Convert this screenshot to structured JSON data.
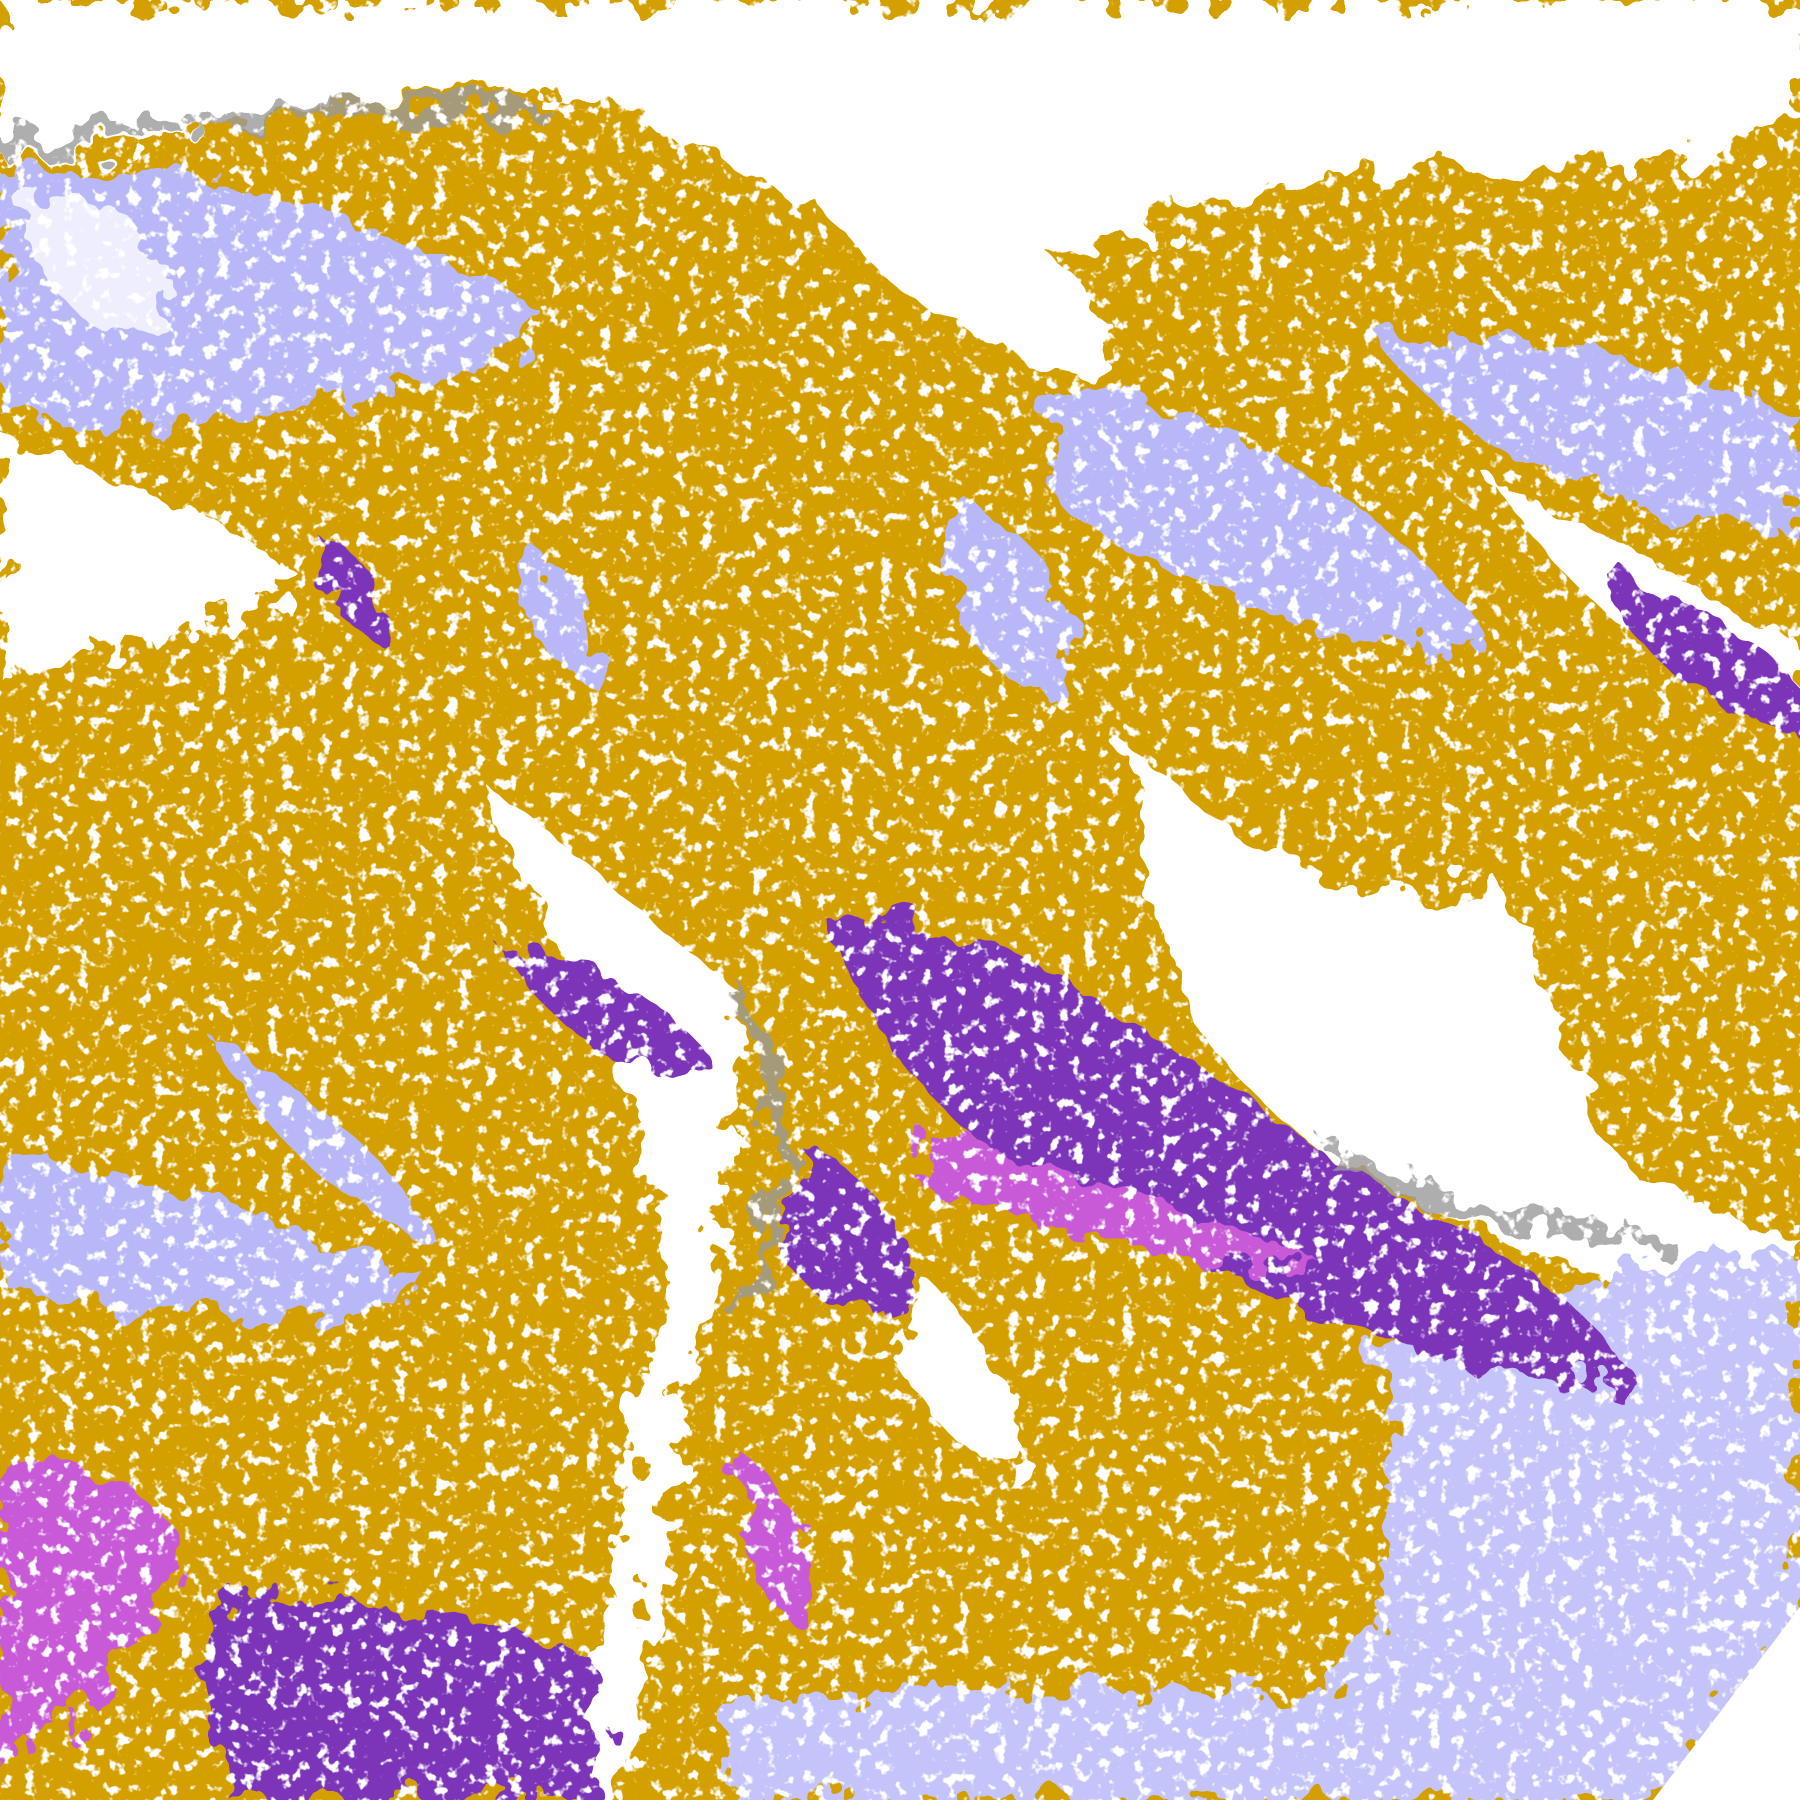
{
  "image": {
    "kind": "false-color satellite cloud classification imagery",
    "colors": {
      "background": "#ffffff",
      "gold": "#d4a000",
      "purple": "#7b35b8",
      "magenta": "#c85ad8",
      "lavender": "#b8b8f8",
      "pale_lavender": "#eeeeff",
      "gray": "#9a9a9a"
    }
  }
}
